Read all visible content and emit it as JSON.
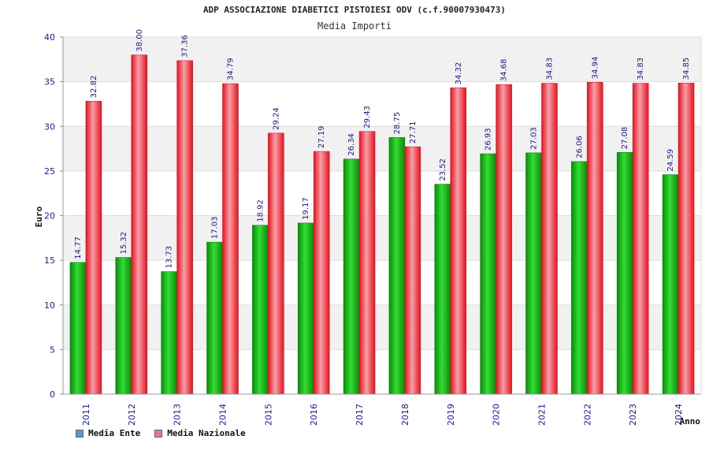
{
  "chart_data": {
    "type": "bar",
    "title": "ADP ASSOCIAZIONE DIABETICI PISTOIESI ODV (c.f.90007930473)",
    "subtitle": "Media Importi",
    "xlabel": "Anno",
    "ylabel": "Euro",
    "ylim": [
      0,
      40
    ],
    "yticks": [
      0,
      5,
      10,
      15,
      20,
      25,
      30,
      35,
      40
    ],
    "grid": true,
    "legend_position": "bottom-left",
    "categories": [
      "2011",
      "2012",
      "2013",
      "2014",
      "2015",
      "2016",
      "2017",
      "2018",
      "2019",
      "2020",
      "2021",
      "2022",
      "2023",
      "2024"
    ],
    "series": [
      {
        "name": "Media Ente",
        "color": "#22bb22",
        "legend_color": "#5599dd",
        "values": [
          14.77,
          15.32,
          13.73,
          17.03,
          18.92,
          19.17,
          26.34,
          28.75,
          23.52,
          26.93,
          27.03,
          26.06,
          27.08,
          24.59
        ],
        "labels": [
          "14.77",
          "15.32",
          "13.73",
          "17.03",
          "18.92",
          "19.17",
          "26.34",
          "28.75",
          "23.52",
          "26.93",
          "27.03",
          "26.06",
          "27.08",
          "24.59"
        ]
      },
      {
        "name": "Media Nazionale",
        "color": "#ee2233",
        "legend_color": "#dd77aa",
        "values": [
          32.82,
          38.0,
          37.36,
          34.79,
          29.24,
          27.19,
          29.43,
          27.71,
          34.32,
          34.68,
          34.83,
          34.94,
          34.83,
          34.85
        ],
        "labels": [
          "32.82",
          "38.00",
          "37.36",
          "34.79",
          "29.24",
          "27.19",
          "29.43",
          "27.71",
          "34.32",
          "34.68",
          "34.83",
          "34.94",
          "34.83",
          "34.85"
        ]
      }
    ]
  }
}
